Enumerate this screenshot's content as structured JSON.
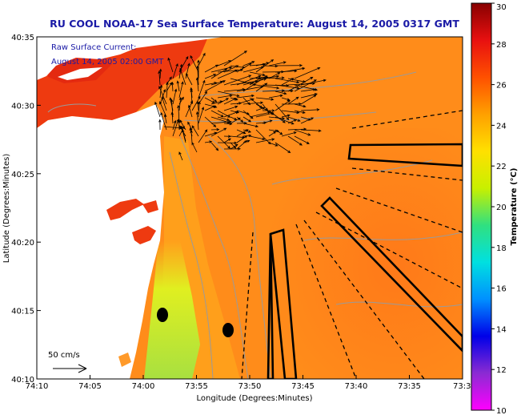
{
  "chart_data": {
    "type": "heatmap",
    "title": "RU COOL  NOAA-17  Sea Surface Temperature:  August 14, 2005 0317 GMT",
    "xlabel": "Longitude (Degrees:Minutes)",
    "ylabel": "Latitude (Degrees:Minutes)",
    "x_ticks": [
      "74:10",
      "74:05",
      "74:00",
      "73:55",
      "73:50",
      "73:45",
      "73:40",
      "73:35",
      "73:3"
    ],
    "y_ticks": [
      "40:35",
      "40:30",
      "40:25",
      "40:20",
      "40:15",
      "40:10"
    ],
    "xlim_deg": [
      -74.1667,
      -73.5
    ],
    "ylim_deg": [
      40.1667,
      40.5833
    ],
    "colorbar": {
      "label": "Temperature (°C)",
      "min": 10,
      "max": 30,
      "ticks": [
        "30",
        "28",
        "26",
        "24",
        "22",
        "20",
        "18",
        "16",
        "14",
        "12",
        "10"
      ],
      "colors": [
        "#ff00ff",
        "#8b2bd2",
        "#0000e8",
        "#0090ff",
        "#00e0e0",
        "#30e080",
        "#c8f000",
        "#ffe000",
        "#ffa000",
        "#ff5000",
        "#e81010",
        "#880000"
      ]
    },
    "annotations": {
      "current_label": "Raw Surface Current:",
      "current_time": "August 14, 2005 02:00 GMT",
      "scale_label": "50 cm/s"
    },
    "summary": {
      "offshore_temp_c": 26.5,
      "nearshore_upwelling_temp_c": 22,
      "coastal_band_temp_c": 25
    }
  },
  "colors": {
    "title": "#1a1aa6",
    "land": "#ffffff",
    "sea_base": "#ff8c1a"
  }
}
